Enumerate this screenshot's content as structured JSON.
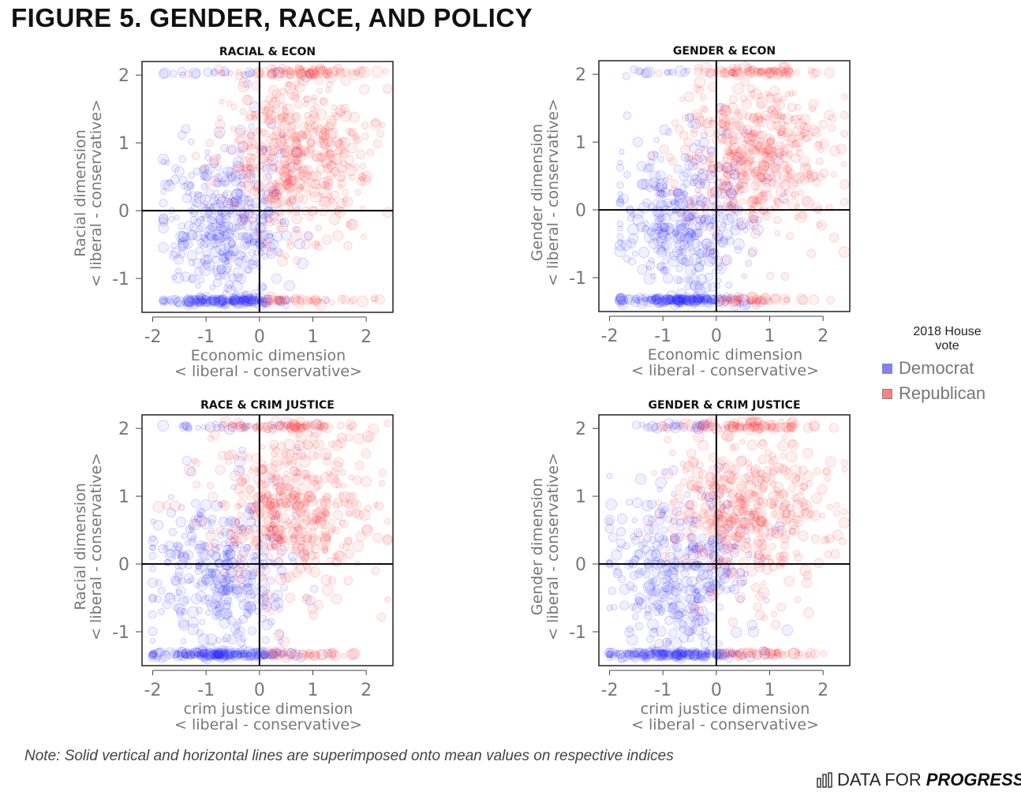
{
  "page": {
    "title": "FIGURE 5. GENDER, RACE, AND POLICY",
    "note": "Note: Solid vertical and horizontal lines are superimposed onto mean values on respective indices",
    "brand_regular": "DATA FOR",
    "brand_bold": "PROGRESS"
  },
  "legend": {
    "title_line1": "2018 House",
    "title_line2": "vote",
    "items": [
      {
        "label": "Democrat",
        "color": "#8080ff"
      },
      {
        "label": "Republican",
        "color": "#ff8080"
      }
    ]
  },
  "colors": {
    "democrat": "#2a2aff",
    "republican": "#ff3030",
    "axis_text": "#777777"
  },
  "chart_data": [
    {
      "type": "scatter",
      "title": "RACIAL & ECON",
      "xlabel": "Economic dimension",
      "xlabel2": "< liberal - conservative>",
      "ylabel": "Racial dimension",
      "ylabel2": "< liberal - conservative>",
      "xlim": [
        -2.2,
        2.5
      ],
      "ylim": [
        -1.5,
        2.2
      ],
      "x_ticks": [
        -2,
        -1,
        0,
        1,
        2
      ],
      "y_ticks": [
        -1,
        0,
        1,
        2
      ],
      "mean_x": 0,
      "mean_y": 0,
      "seed": 11,
      "series": [
        {
          "name": "Democrat",
          "x_range": [
            -1.8,
            2.4
          ],
          "x_center": -0.6,
          "x_spread": 0.6,
          "y_center": -0.2,
          "y_spread": 0.6,
          "bottom_band": -1.33,
          "n": 560
        },
        {
          "name": "Republican",
          "x_range": [
            -1.8,
            2.4
          ],
          "x_center": 0.7,
          "x_spread": 0.7,
          "y_center": 0.8,
          "y_spread": 0.6,
          "bottom_band": -1.33,
          "n": 560
        }
      ]
    },
    {
      "type": "scatter",
      "title": "GENDER & ECON",
      "xlabel": "Economic dimension",
      "xlabel2": "< liberal - conservative>",
      "ylabel": "Gender dimension",
      "ylabel2": "< liberal - conservative>",
      "xlim": [
        -2.2,
        2.5
      ],
      "ylim": [
        -1.5,
        2.2
      ],
      "x_ticks": [
        -2,
        -1,
        0,
        1,
        2
      ],
      "y_ticks": [
        -1,
        0,
        1,
        2
      ],
      "mean_x": 0,
      "mean_y": 0,
      "seed": 23,
      "series": [
        {
          "name": "Democrat",
          "x_range": [
            -1.8,
            2.4
          ],
          "x_center": -0.6,
          "x_spread": 0.6,
          "y_center": -0.2,
          "y_spread": 0.6,
          "bottom_band": -1.33,
          "n": 560
        },
        {
          "name": "Republican",
          "x_range": [
            -1.8,
            2.4
          ],
          "x_center": 0.7,
          "x_spread": 0.7,
          "y_center": 0.8,
          "y_spread": 0.6,
          "bottom_band": -1.33,
          "n": 560
        }
      ]
    },
    {
      "type": "scatter",
      "title": "RACE & CRIM JUSTICE",
      "xlabel": "crim justice dimension",
      "xlabel2": "< liberal - conservative>",
      "ylabel": "Racial dimension",
      "ylabel2": "< liberal - conservative>",
      "xlim": [
        -2.2,
        2.5
      ],
      "ylim": [
        -1.5,
        2.2
      ],
      "x_ticks": [
        -2,
        -1,
        0,
        1,
        2
      ],
      "y_ticks": [
        -1,
        0,
        1,
        2
      ],
      "mean_x": 0,
      "mean_y": 0,
      "seed": 37,
      "series": [
        {
          "name": "Democrat",
          "x_range": [
            -2.0,
            2.4
          ],
          "x_center": -0.7,
          "x_spread": 0.65,
          "y_center": -0.2,
          "y_spread": 0.6,
          "bottom_band": -1.33,
          "n": 560
        },
        {
          "name": "Republican",
          "x_range": [
            -2.0,
            2.4
          ],
          "x_center": 0.6,
          "x_spread": 0.7,
          "y_center": 0.8,
          "y_spread": 0.6,
          "bottom_band": -1.33,
          "n": 560
        }
      ]
    },
    {
      "type": "scatter",
      "title": "GENDER & CRIM JUSTICE",
      "xlabel": "crim justice dimension",
      "xlabel2": "< liberal - conservative>",
      "ylabel": "Gender dimension",
      "ylabel2": "< liberal - conservative>",
      "xlim": [
        -2.2,
        2.5
      ],
      "ylim": [
        -1.5,
        2.2
      ],
      "x_ticks": [
        -2,
        -1,
        0,
        1,
        2
      ],
      "y_ticks": [
        -1,
        0,
        1,
        2
      ],
      "mean_x": 0,
      "mean_y": 0,
      "seed": 53,
      "series": [
        {
          "name": "Democrat",
          "x_range": [
            -2.0,
            2.4
          ],
          "x_center": -0.7,
          "x_spread": 0.65,
          "y_center": -0.2,
          "y_spread": 0.6,
          "bottom_band": -1.33,
          "n": 560
        },
        {
          "name": "Republican",
          "x_range": [
            -2.0,
            2.4
          ],
          "x_center": 0.6,
          "x_spread": 0.7,
          "y_center": 0.8,
          "y_spread": 0.6,
          "bottom_band": -1.33,
          "n": 560
        }
      ]
    }
  ]
}
